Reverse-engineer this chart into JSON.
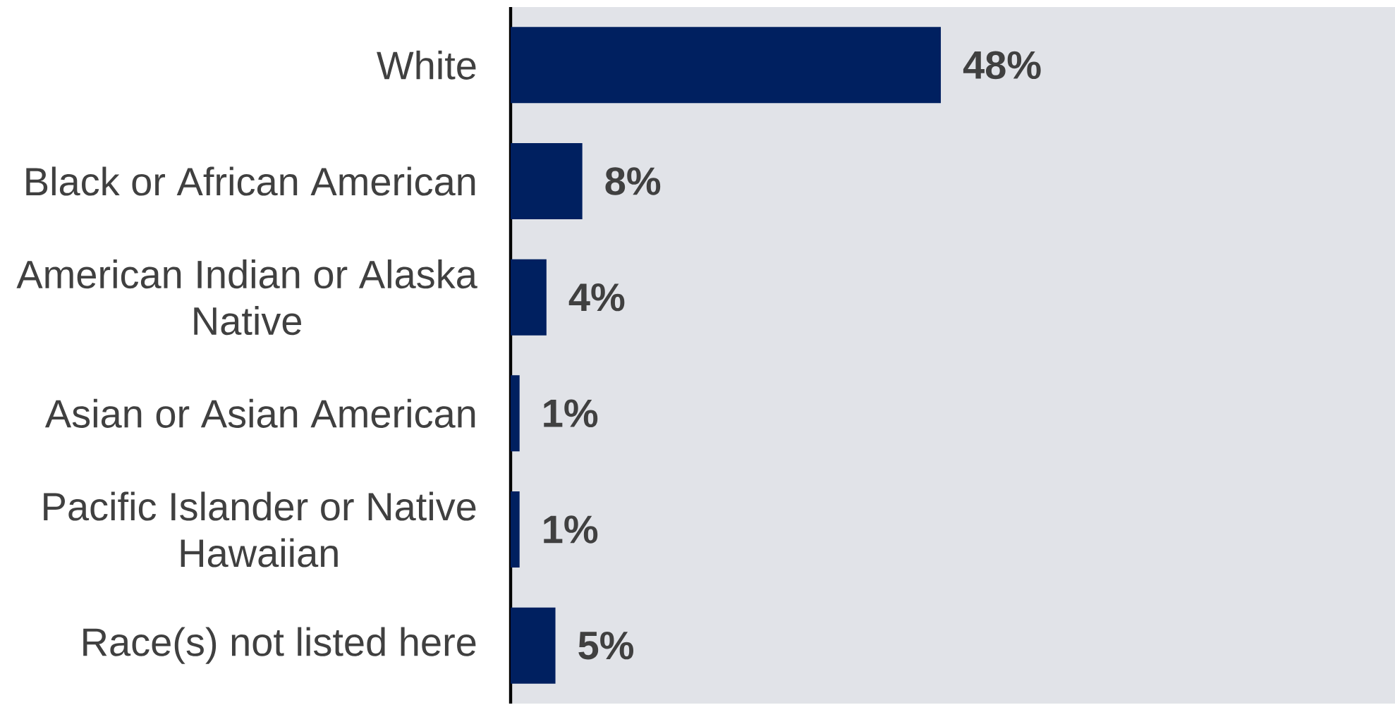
{
  "chart_data": {
    "type": "bar",
    "orientation": "horizontal",
    "categories": [
      "White",
      "Black or African American",
      "American Indian or Alaska Native",
      "Asian or Asian American",
      "Pacific Islander or Native Hawaiian",
      "Race(s) not listed here"
    ],
    "values": [
      48,
      8,
      4,
      1,
      1,
      5
    ],
    "value_labels": [
      "48%",
      "8%",
      "4%",
      "1%",
      "1%",
      "5%"
    ],
    "color": "#002060"
  }
}
